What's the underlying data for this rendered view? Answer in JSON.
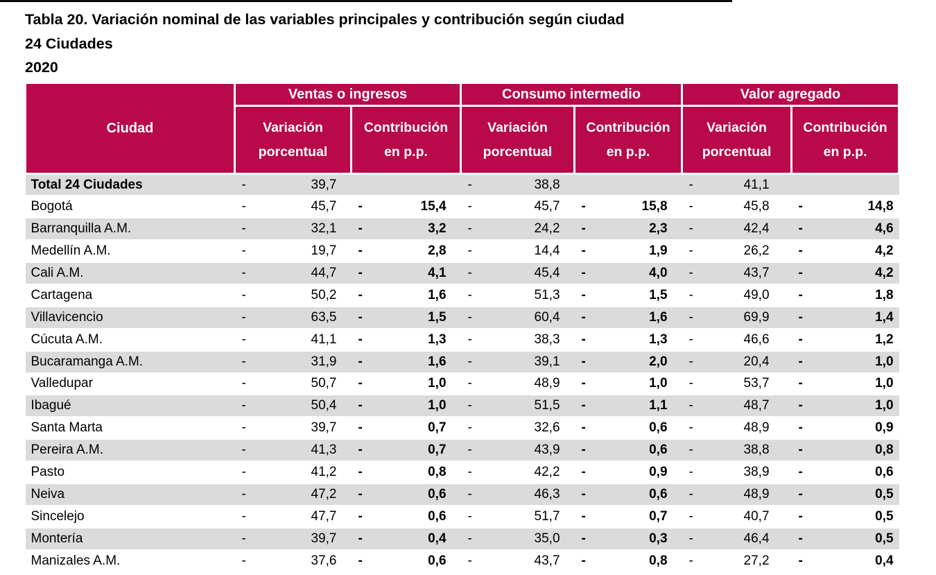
{
  "page": {
    "title": "Tabla 20. Variación nominal de las variables principales y contribución según ciudad",
    "subtitle_scope": "24 Ciudades",
    "subtitle_year": "2020"
  },
  "colors": {
    "header_bg": "#B8094B",
    "row_stripe_bg": "#DBDBDB",
    "header_text": "#FFFFFF",
    "body_text": "#000000"
  },
  "table": {
    "minus_sign": "-",
    "header": {
      "ciudad_label": "Ciudad",
      "groups": [
        {
          "label": "Ventas o ingresos"
        },
        {
          "label": "Consumo intermedio"
        },
        {
          "label": "Valor agregado"
        }
      ],
      "sub_variacion": "Variación porcentual",
      "sub_contribucion": "Contribución en p.p."
    },
    "rows": [
      {
        "ciudad": "Total 24 Ciudades",
        "is_total": true,
        "cells": [
          "39,7",
          null,
          "38,8",
          null,
          "41,1",
          null
        ]
      },
      {
        "ciudad": "Bogotá",
        "is_total": false,
        "cells": [
          "45,7",
          "15,4",
          "45,7",
          "15,8",
          "45,8",
          "14,8"
        ]
      },
      {
        "ciudad": "Barranquilla A.M.",
        "is_total": false,
        "cells": [
          "32,1",
          "3,2",
          "24,2",
          "2,3",
          "42,4",
          "4,6"
        ]
      },
      {
        "ciudad": "Medellín A.M.",
        "is_total": false,
        "cells": [
          "19,7",
          "2,8",
          "14,4",
          "1,9",
          "26,2",
          "4,2"
        ]
      },
      {
        "ciudad": "Cali A.M.",
        "is_total": false,
        "cells": [
          "44,7",
          "4,1",
          "45,4",
          "4,0",
          "43,7",
          "4,2"
        ]
      },
      {
        "ciudad": "Cartagena",
        "is_total": false,
        "cells": [
          "50,2",
          "1,6",
          "51,3",
          "1,5",
          "49,0",
          "1,8"
        ]
      },
      {
        "ciudad": "Villavicencio",
        "is_total": false,
        "cells": [
          "63,5",
          "1,5",
          "60,4",
          "1,6",
          "69,9",
          "1,4"
        ]
      },
      {
        "ciudad": "Cúcuta A.M.",
        "is_total": false,
        "cells": [
          "41,1",
          "1,3",
          "38,3",
          "1,3",
          "46,6",
          "1,2"
        ]
      },
      {
        "ciudad": "Bucaramanga A.M.",
        "is_total": false,
        "cells": [
          "31,9",
          "1,6",
          "39,1",
          "2,0",
          "20,4",
          "1,0"
        ]
      },
      {
        "ciudad": "Valledupar",
        "is_total": false,
        "cells": [
          "50,7",
          "1,0",
          "48,9",
          "1,0",
          "53,7",
          "1,0"
        ]
      },
      {
        "ciudad": "Ibagué",
        "is_total": false,
        "cells": [
          "50,4",
          "1,0",
          "51,5",
          "1,1",
          "48,7",
          "1,0"
        ]
      },
      {
        "ciudad": "Santa Marta",
        "is_total": false,
        "cells": [
          "39,7",
          "0,7",
          "32,6",
          "0,6",
          "48,9",
          "0,9"
        ]
      },
      {
        "ciudad": "Pereira A.M.",
        "is_total": false,
        "cells": [
          "41,3",
          "0,7",
          "43,9",
          "0,6",
          "38,8",
          "0,8"
        ]
      },
      {
        "ciudad": "Pasto",
        "is_total": false,
        "cells": [
          "41,2",
          "0,8",
          "42,2",
          "0,9",
          "38,9",
          "0,6"
        ]
      },
      {
        "ciudad": "Neiva",
        "is_total": false,
        "cells": [
          "47,2",
          "0,6",
          "46,3",
          "0,6",
          "48,9",
          "0,5"
        ]
      },
      {
        "ciudad": "Sincelejo",
        "is_total": false,
        "cells": [
          "47,7",
          "0,6",
          "51,7",
          "0,7",
          "40,7",
          "0,5"
        ]
      },
      {
        "ciudad": "Montería",
        "is_total": false,
        "cells": [
          "39,7",
          "0,4",
          "35,0",
          "0,3",
          "46,4",
          "0,5"
        ]
      },
      {
        "ciudad": "Manizales A.M.",
        "is_total": false,
        "cells": [
          "37,6",
          "0,6",
          "43,7",
          "0,8",
          "27,2",
          "0,4"
        ]
      }
    ]
  }
}
